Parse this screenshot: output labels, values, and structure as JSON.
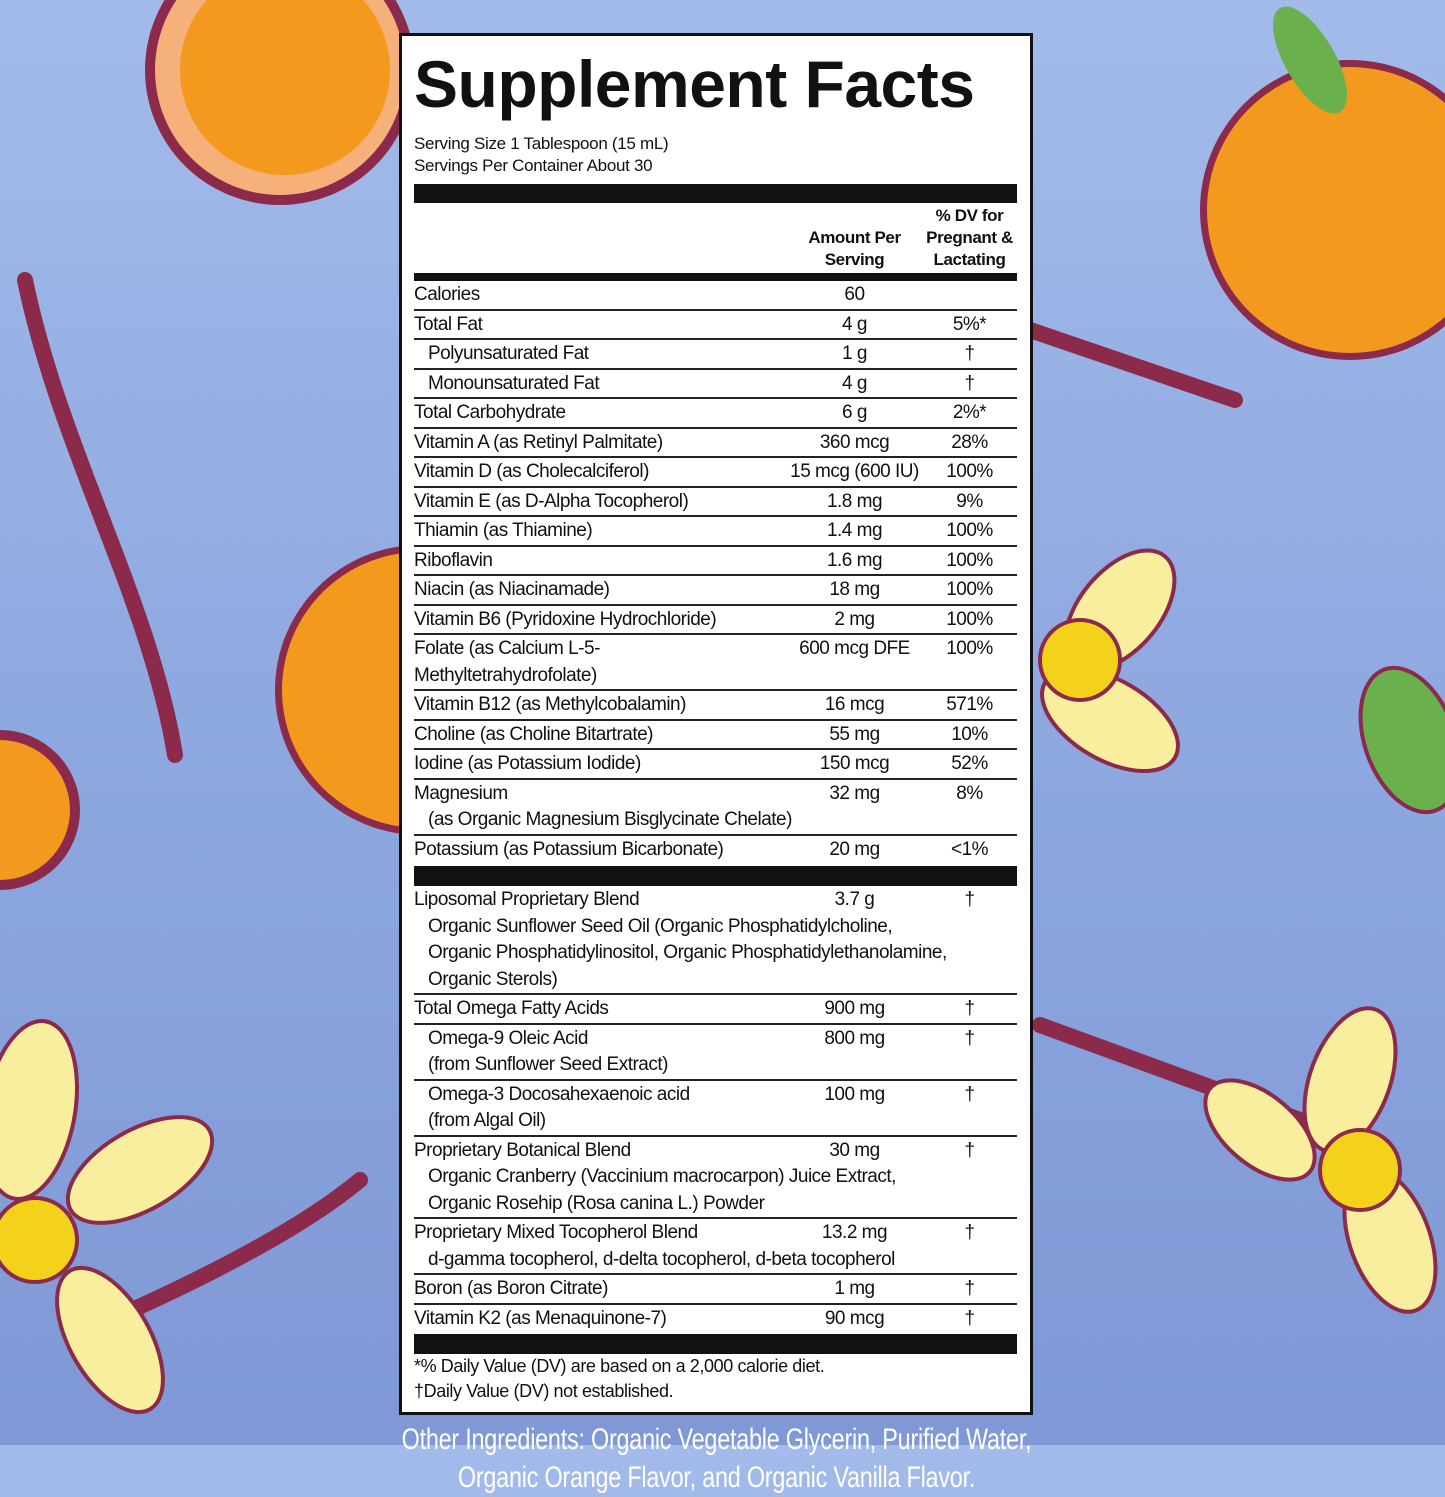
{
  "colors": {
    "background_top": "#a3bbea",
    "background_bottom": "#7f98d6",
    "orange": "#f39a1e",
    "vanilla_pod": "#8b2a4a",
    "flower": "#f9ee9e",
    "flower_center": "#f4d21c",
    "leaf": "#6ab04c"
  },
  "title": "Supplement Facts",
  "serving_size": "Serving Size 1 Tablespoon (15 mL)",
  "servings_per_container": "Servings Per Container About 30",
  "header": {
    "amount": "Amount Per Serving",
    "dv": "% DV for Pregnant & Lactating"
  },
  "rows": [
    {
      "name": "Calories",
      "amount": "60",
      "dv": ""
    },
    {
      "name": "Total Fat",
      "amount": "4 g",
      "dv": "5%*"
    },
    {
      "name": "Polyunsaturated Fat",
      "amount": "1 g",
      "dv": "†",
      "indent": true
    },
    {
      "name": "Monounsaturated Fat",
      "amount": "4 g",
      "dv": "†",
      "indent": true
    },
    {
      "name": "Total Carbohydrate",
      "amount": "6 g",
      "dv": "2%*"
    },
    {
      "name": "Vitamin A (as Retinyl Palmitate)",
      "amount": "360 mcg",
      "dv": "28%"
    },
    {
      "name": "Vitamin D (as Cholecalciferol)",
      "amount": "15 mcg (600 IU)",
      "dv": "100%"
    },
    {
      "name": "Vitamin E (as D-Alpha Tocopherol)",
      "amount": "1.8 mg",
      "dv": "9%"
    },
    {
      "name": "Thiamin (as Thiamine)",
      "amount": "1.4 mg",
      "dv": "100%"
    },
    {
      "name": "Riboflavin",
      "amount": "1.6 mg",
      "dv": "100%"
    },
    {
      "name": "Niacin (as Niacinamade)",
      "amount": "18 mg",
      "dv": "100%"
    },
    {
      "name": "Vitamin B6 (Pyridoxine Hydrochloride)",
      "amount": "2 mg",
      "dv": "100%"
    },
    {
      "name": "Folate (as Calcium L-5-Methyltetrahydrofolate)",
      "amount": "600 mcg DFE",
      "dv": "100%"
    },
    {
      "name": "Vitamin B12 (as Methylcobalamin)",
      "amount": "16 mcg",
      "dv": "571%"
    },
    {
      "name": "Choline (as Choline Bitartrate)",
      "amount": "55 mg",
      "dv": "10%"
    },
    {
      "name": "Iodine (as Potassium Iodide)",
      "amount": "150 mcg",
      "dv": "52%"
    },
    {
      "name": "Magnesium",
      "sub": [
        "(as Organic Magnesium Bisglycinate Chelate)"
      ],
      "amount": "32 mg",
      "dv": "8%"
    },
    {
      "name": "Potassium (as Potassium Bicarbonate)",
      "amount": "20 mg",
      "dv": "<1%",
      "last": true
    }
  ],
  "rows2": [
    {
      "name": "Liposomal Proprietary Blend",
      "sub": [
        "Organic Sunflower Seed Oil (Organic Phosphatidylcholine,",
        "Organic Phosphatidylinositol, Organic Phosphatidylethanolamine,",
        "Organic Sterols)"
      ],
      "amount": "3.7 g",
      "dv": "†"
    },
    {
      "name": "Total Omega Fatty Acids",
      "amount": "900 mg",
      "dv": "†"
    },
    {
      "name": "Omega-9 Oleic Acid",
      "sub": [
        "(from Sunflower Seed Extract)"
      ],
      "amount": "800 mg",
      "dv": "†",
      "indent": true
    },
    {
      "name": "Omega-3 Docosahexaenoic acid",
      "sub": [
        "(from Algal Oil)"
      ],
      "amount": "100 mg",
      "dv": "†",
      "indent": true
    },
    {
      "name": "Proprietary Botanical Blend",
      "sub": [
        "Organic Cranberry (Vaccinium macrocarpon) Juice Extract,",
        "Organic Rosehip (Rosa canina L.) Powder"
      ],
      "amount": "30 mg",
      "dv": "†"
    },
    {
      "name": "Proprietary Mixed Tocopherol Blend",
      "sub": [
        "d-gamma tocopherol, d-delta tocopherol, d-beta tocopherol"
      ],
      "amount": "13.2 mg",
      "dv": "†"
    },
    {
      "name": "Boron (as Boron Citrate)",
      "amount": "1 mg",
      "dv": "†"
    },
    {
      "name": "Vitamin K2 (as Menaquinone-7)",
      "amount": "90 mcg",
      "dv": "†",
      "last": true
    }
  ],
  "footnotes": [
    "*% Daily Value (DV) are based on a 2,000 calorie diet.",
    "†Daily Value (DV) not established."
  ],
  "other_ingredients": [
    "Other Ingredients: Organic Vegetable Glycerin, Purified Water,",
    "Organic Orange Flavor, and Organic Vanilla Flavor."
  ]
}
